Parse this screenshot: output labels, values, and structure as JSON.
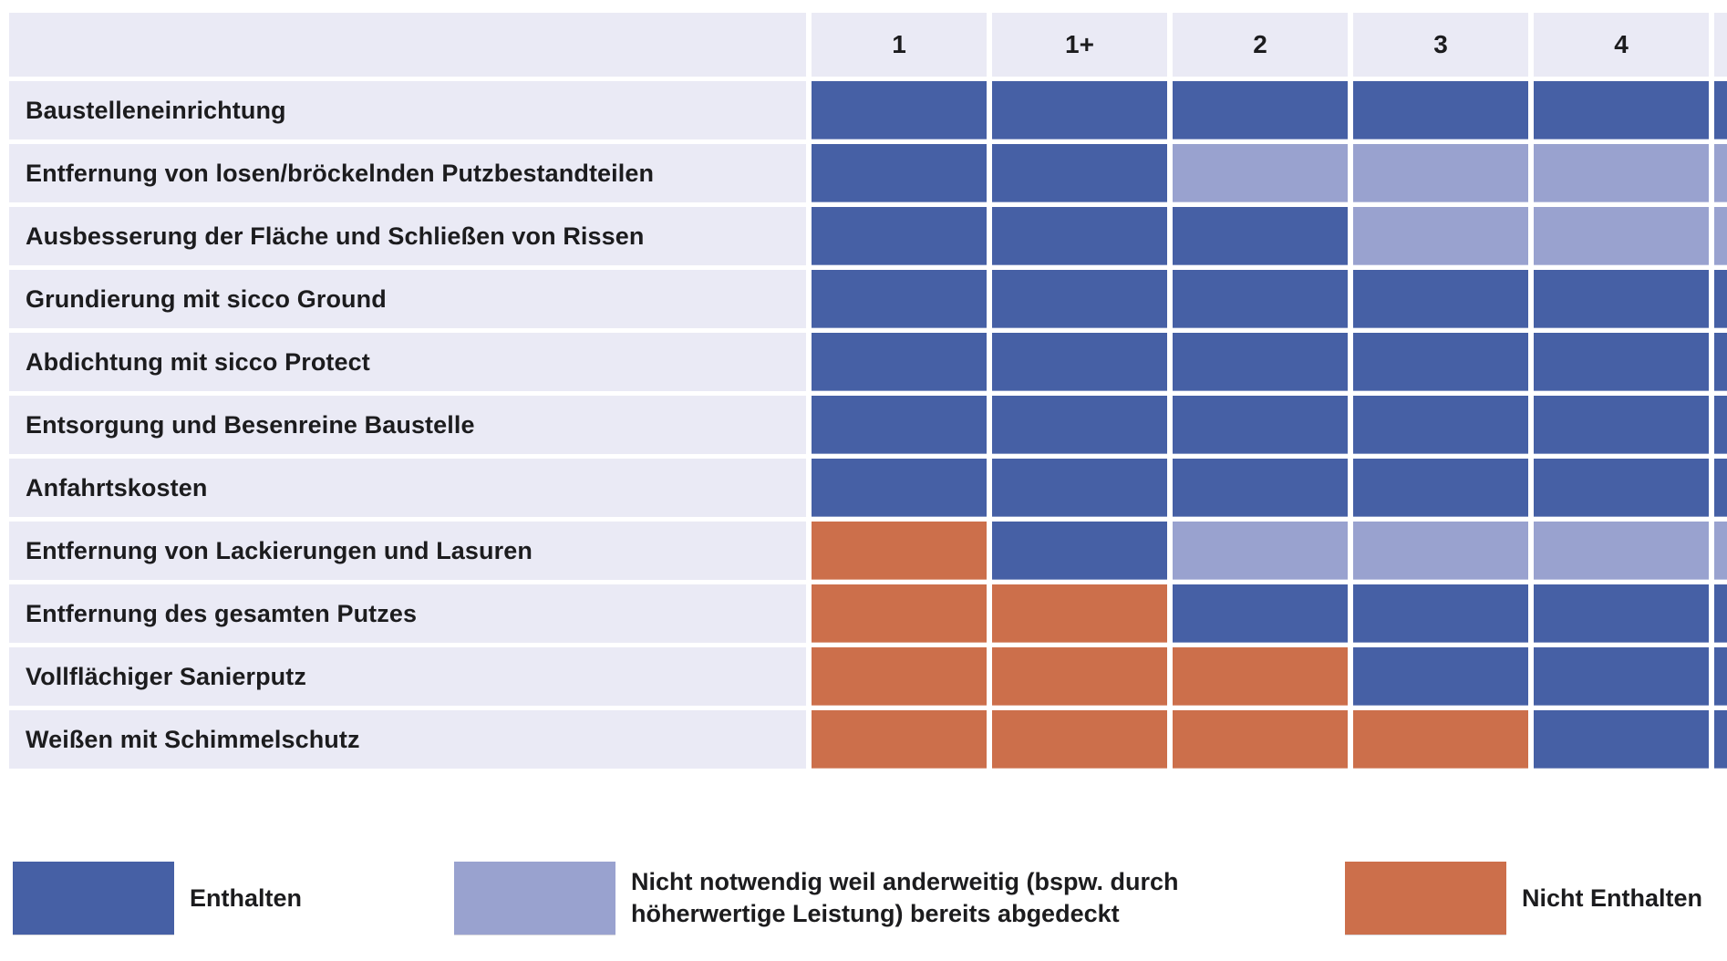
{
  "colors": {
    "included": "#4660a5",
    "covered": "#99a2cf",
    "not_included": "#cc6f4b",
    "header_bg": "#eaeaf5",
    "text": "#1c1c1e",
    "background": "#ffffff"
  },
  "chart_data": {
    "type": "heatmap",
    "title": "",
    "columns": [
      "1",
      "1+",
      "2",
      "3",
      "4"
    ],
    "cut_column_label": "",
    "cut_column_visible": true,
    "status_values": [
      "included",
      "covered",
      "not_included"
    ],
    "rows": [
      {
        "label": "Baustelleneinrichtung",
        "cells": [
          "included",
          "included",
          "included",
          "included",
          "included"
        ],
        "cut": "included"
      },
      {
        "label": "Entfernung von losen/bröckelnden Putzbestandteilen",
        "cells": [
          "included",
          "included",
          "covered",
          "covered",
          "covered"
        ],
        "cut": "covered"
      },
      {
        "label": "Ausbesserung der Fläche und Schließen von Rissen",
        "cells": [
          "included",
          "included",
          "included",
          "covered",
          "covered"
        ],
        "cut": "covered"
      },
      {
        "label": "Grundierung mit sicco Ground",
        "cells": [
          "included",
          "included",
          "included",
          "included",
          "included"
        ],
        "cut": "included"
      },
      {
        "label": "Abdichtung mit sicco Protect",
        "cells": [
          "included",
          "included",
          "included",
          "included",
          "included"
        ],
        "cut": "included"
      },
      {
        "label": "Entsorgung und Besenreine Baustelle",
        "cells": [
          "included",
          "included",
          "included",
          "included",
          "included"
        ],
        "cut": "included"
      },
      {
        "label": "Anfahrtskosten",
        "cells": [
          "included",
          "included",
          "included",
          "included",
          "included"
        ],
        "cut": "included"
      },
      {
        "label": "Entfernung von Lackierungen und Lasuren",
        "cells": [
          "not_included",
          "included",
          "covered",
          "covered",
          "covered"
        ],
        "cut": "covered"
      },
      {
        "label": "Entfernung des gesamten Putzes",
        "cells": [
          "not_included",
          "not_included",
          "included",
          "included",
          "included"
        ],
        "cut": "included"
      },
      {
        "label": "Vollflächiger Sanierputz",
        "cells": [
          "not_included",
          "not_included",
          "not_included",
          "included",
          "included"
        ],
        "cut": "included"
      },
      {
        "label": "Weißen mit Schimmelschutz",
        "cells": [
          "not_included",
          "not_included",
          "not_included",
          "not_included",
          "included"
        ],
        "cut": "included"
      }
    ],
    "legend": [
      {
        "status": "included",
        "label": "Enthalten"
      },
      {
        "status": "covered",
        "label": "Nicht notwendig weil anderweitig (bspw. durch höherwertige Leistung) bereits abgedeckt"
      },
      {
        "status": "not_included",
        "label": "Nicht Enthalten"
      }
    ],
    "layout_hints": {
      "legend_position": "bottom",
      "grid": "white-gaps-between-cells",
      "label_column": "left"
    }
  }
}
